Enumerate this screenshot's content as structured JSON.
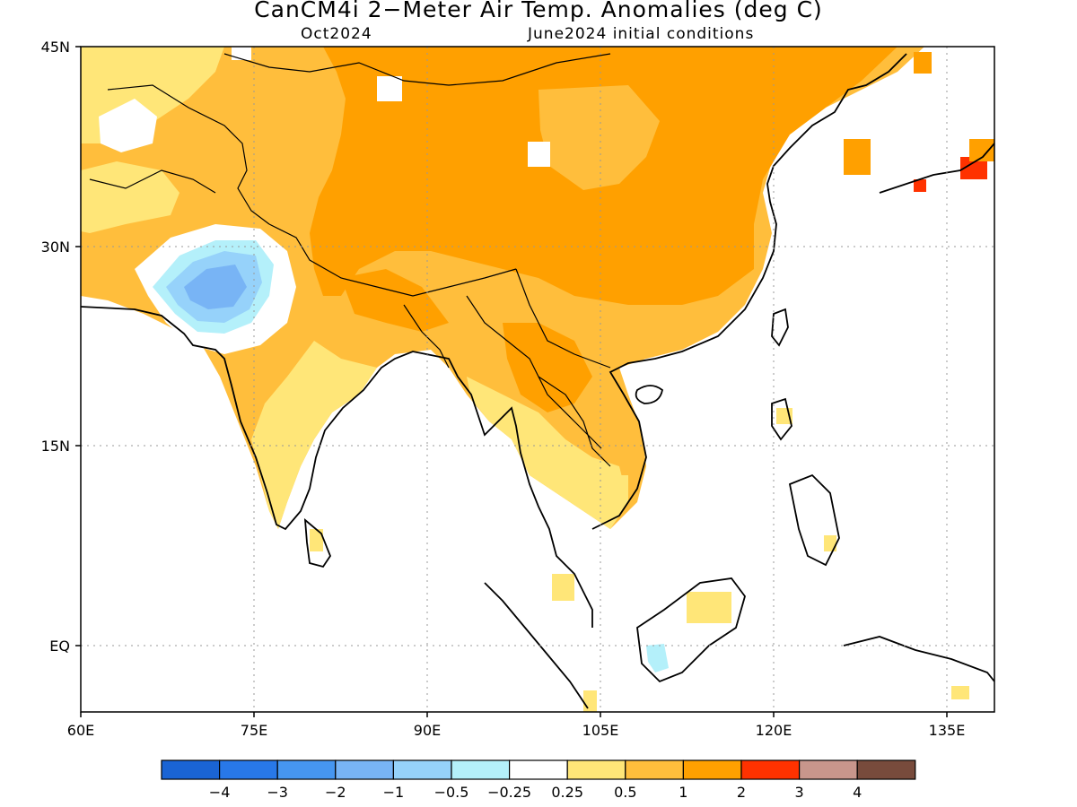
{
  "title": "CanCM4i 2−Meter Air Temp. Anomalies (deg C)",
  "subtitle_left": "Oct2024",
  "subtitle_right": "June2024 initial conditions",
  "lat_labels": [
    "45N",
    "30N",
    "15N",
    "EQ"
  ],
  "lon_labels": [
    "60E",
    "75E",
    "90E",
    "105E",
    "120E",
    "135E"
  ],
  "colorbar": {
    "colors": [
      "#1a64d4",
      "#2878e8",
      "#4696f0",
      "#78b4f5",
      "#96d2fa",
      "#b4f0fa",
      "#ffffff",
      "#ffe678",
      "#ffbe3c",
      "#ffa000",
      "#ff3200",
      "#c8968c",
      "#784b3c"
    ],
    "labels": [
      "−4",
      "−3",
      "−2",
      "−1",
      "−0.5",
      "−0.25",
      "0.25",
      "0.5",
      "1",
      "2",
      "3",
      "4"
    ]
  }
}
